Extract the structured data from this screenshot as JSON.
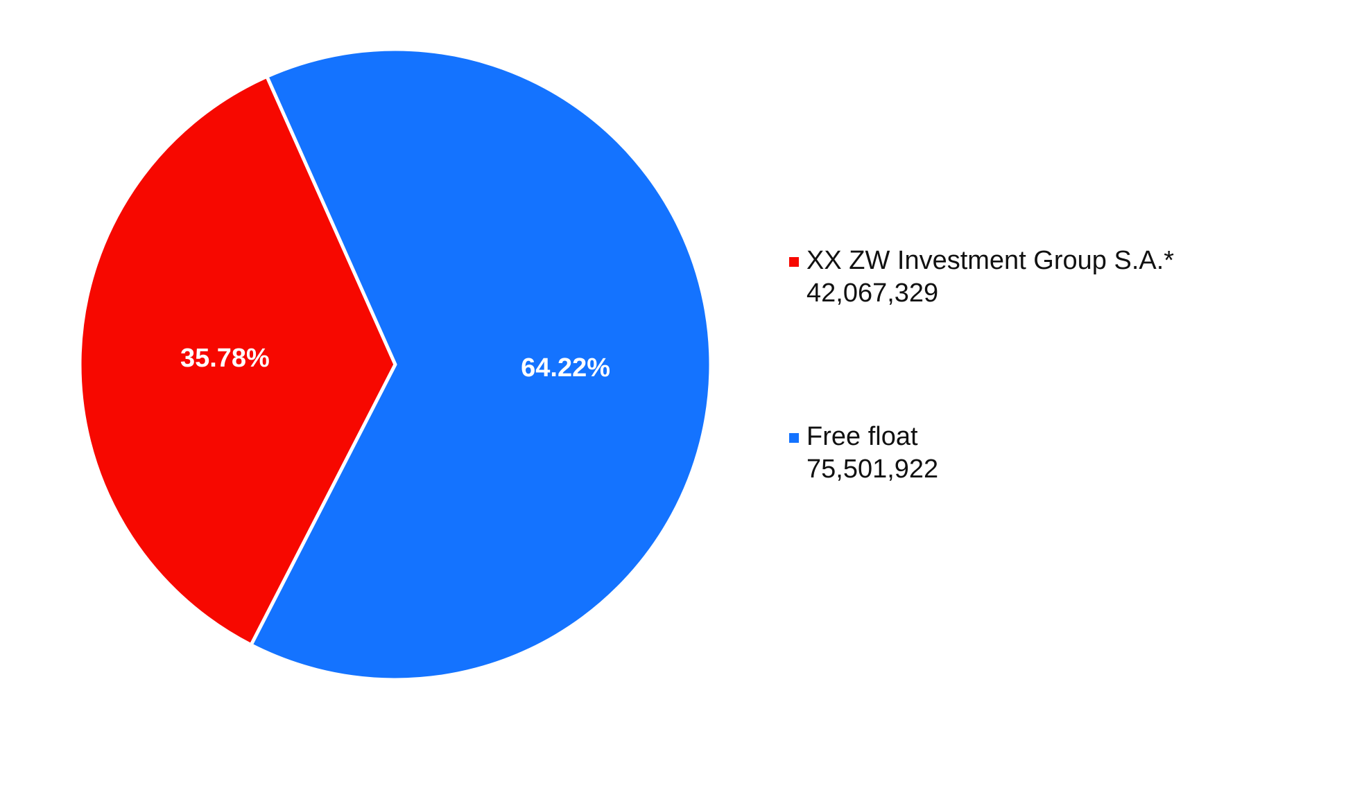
{
  "chart_data": {
    "type": "pie",
    "categories": [
      "XX ZW Investment Group S.A.*",
      "Free float"
    ],
    "values": [
      35.78,
      64.22
    ],
    "value_labels": [
      "35.78%",
      "64.22%"
    ],
    "counts": [
      42067329,
      75501922
    ],
    "count_labels": [
      "42,067,329",
      "75,501,922"
    ],
    "colors": [
      "#f70800",
      "#1473ff"
    ]
  }
}
